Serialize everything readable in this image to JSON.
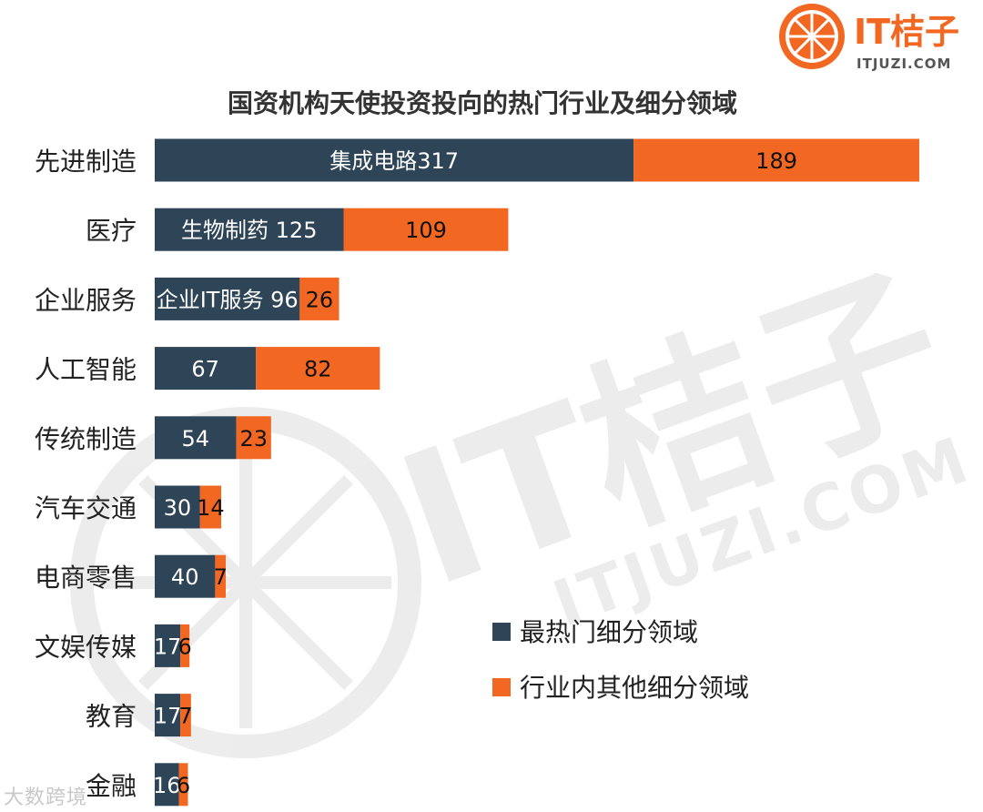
{
  "brand": {
    "name": "IT桔子",
    "domain": "ITJUZI.COM",
    "color": "#f26722"
  },
  "source_mark": "大数跨境",
  "chart_data": {
    "type": "bar",
    "orientation": "horizontal",
    "stacked": true,
    "title": "国资机构天使投资投向的热门行业及细分领域",
    "xlim": [
      0,
      520
    ],
    "grid": false,
    "legend_position": "right-middle",
    "categories": [
      "先进制造",
      "医疗",
      "企业服务",
      "人工智能",
      "传统制造",
      "汽车交通",
      "电商零售",
      "文娱传媒",
      "教育",
      "金融"
    ],
    "series": [
      {
        "name": "最热门细分领域",
        "color": "#2e4457",
        "values": [
          317,
          125,
          96,
          67,
          54,
          30,
          40,
          17,
          17,
          16
        ],
        "labels": [
          "集成电路317",
          "生物制药 125",
          "企业IT服务 96",
          "67",
          "54",
          "30",
          "40",
          "17",
          "17",
          "16"
        ]
      },
      {
        "name": "行业内其他细分领域",
        "color": "#f26722",
        "values": [
          189,
          109,
          26,
          82,
          23,
          14,
          7,
          6,
          7,
          6
        ],
        "labels": [
          "189",
          "109",
          "26",
          "82",
          "23",
          "14",
          "7",
          "6",
          "7",
          "6"
        ]
      }
    ]
  }
}
